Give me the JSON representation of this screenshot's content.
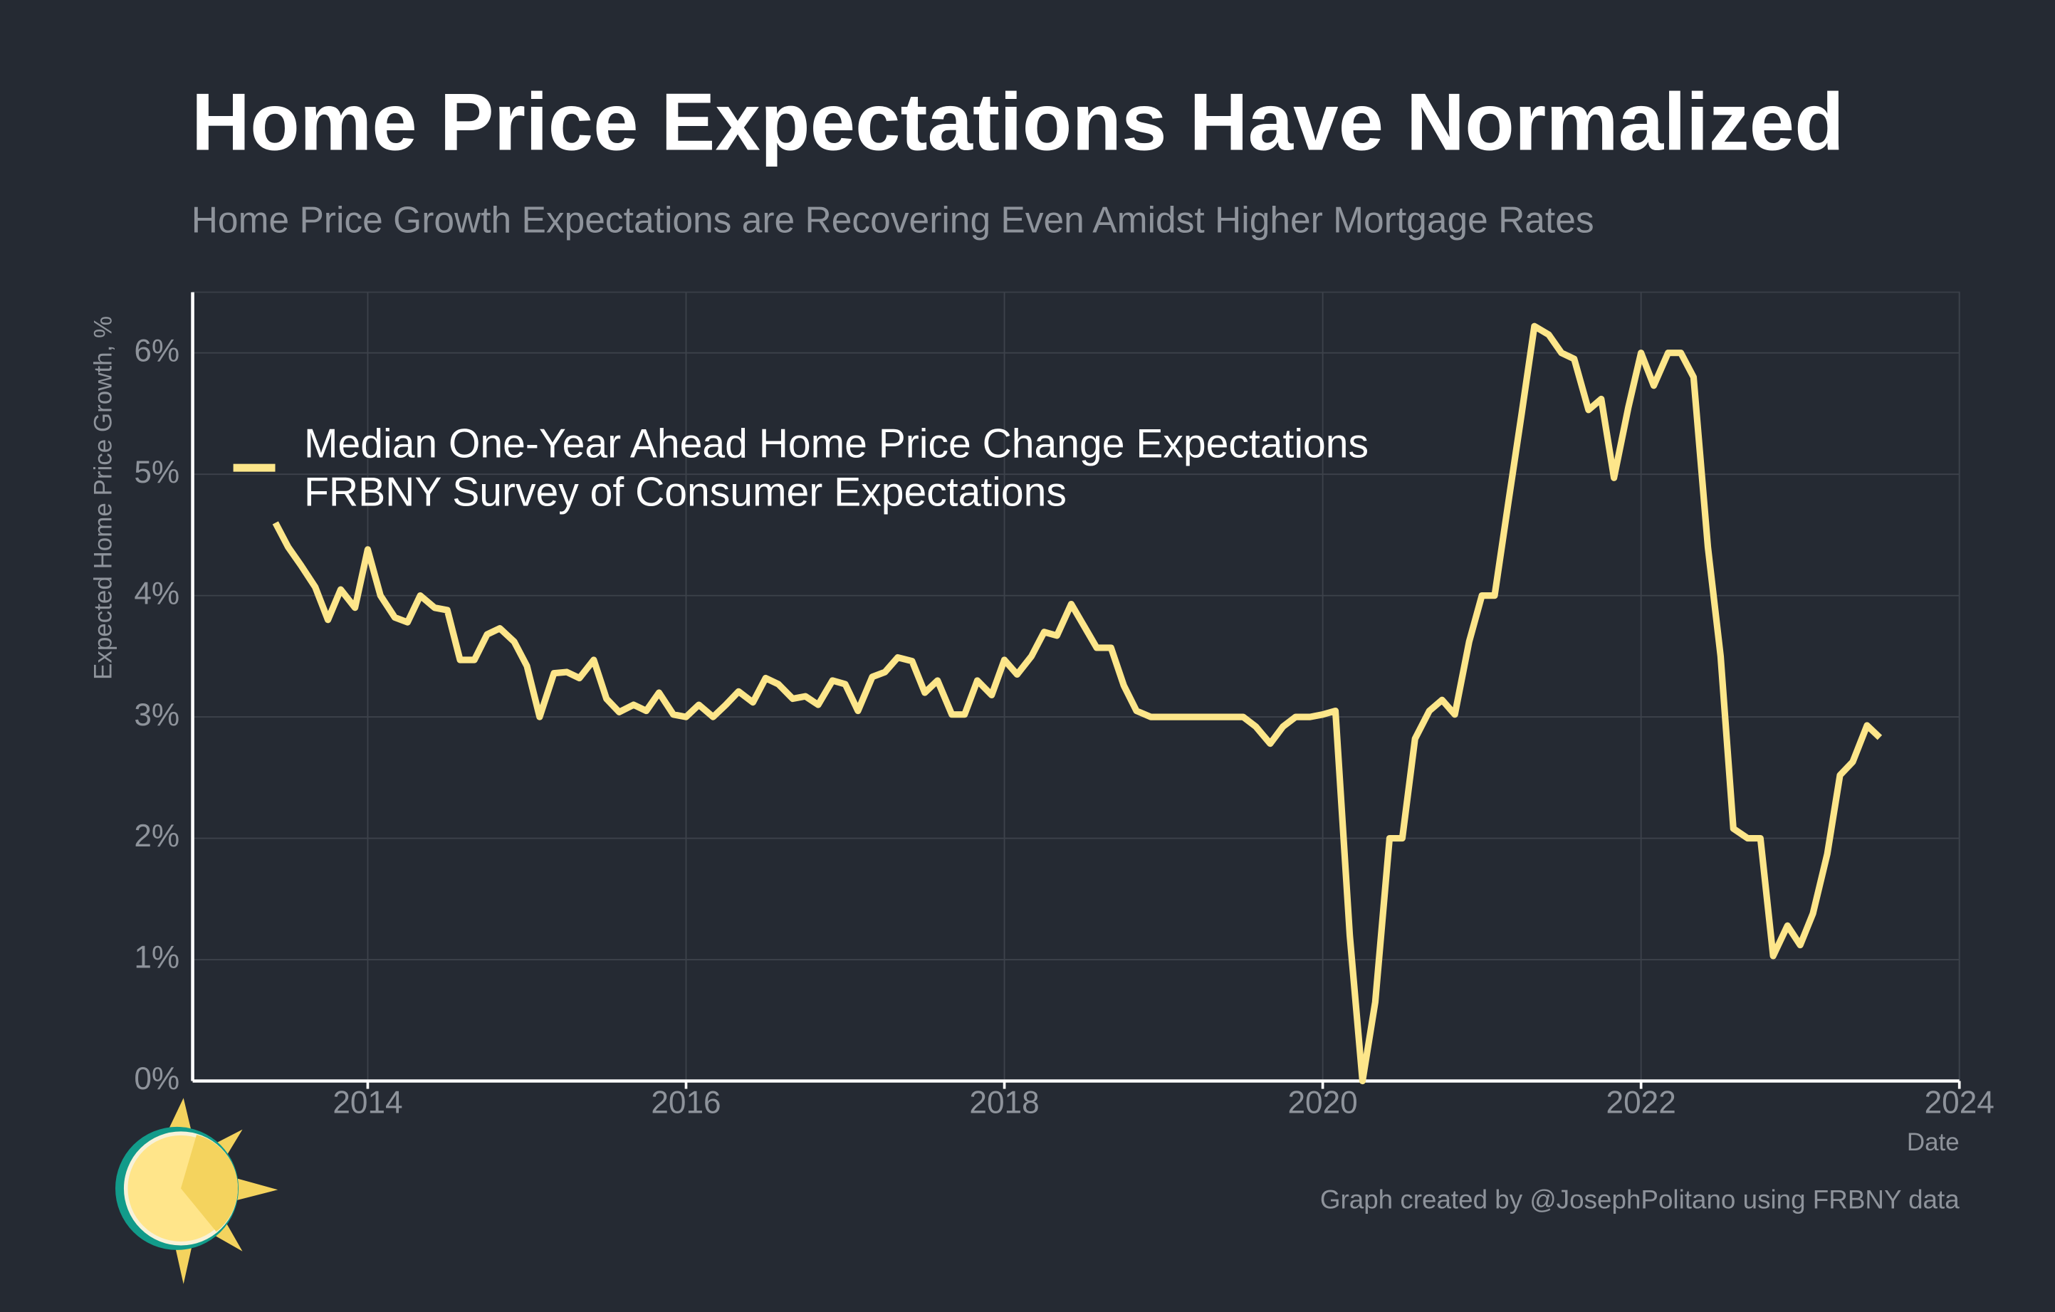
{
  "chart_data": {
    "type": "line",
    "title": "Home Price Expectations Have Normalized",
    "subtitle": "Home Price Growth Expectations are Recovering Even Amidst Higher Mortgage Rates",
    "y_label": "Expected Home Price Growth, %",
    "x_label": "Date",
    "caption": "Graph created by @JosephPolitano using FRBNY data",
    "x": [
      2013.42,
      2013.5,
      2013.58,
      2013.67,
      2013.75,
      2013.83,
      2013.92,
      2014.0,
      2014.08,
      2014.17,
      2014.25,
      2014.33,
      2014.42,
      2014.5,
      2014.58,
      2014.67,
      2014.75,
      2014.83,
      2014.92,
      2015.0,
      2015.08,
      2015.17,
      2015.25,
      2015.33,
      2015.42,
      2015.5,
      2015.58,
      2015.67,
      2015.75,
      2015.83,
      2015.92,
      2016.0,
      2016.08,
      2016.17,
      2016.25,
      2016.33,
      2016.42,
      2016.5,
      2016.58,
      2016.67,
      2016.75,
      2016.83,
      2016.92,
      2017.0,
      2017.08,
      2017.17,
      2017.25,
      2017.33,
      2017.42,
      2017.5,
      2017.58,
      2017.67,
      2017.75,
      2017.83,
      2017.92,
      2018.0,
      2018.08,
      2018.17,
      2018.25,
      2018.33,
      2018.42,
      2018.5,
      2018.58,
      2018.67,
      2018.75,
      2018.83,
      2018.92,
      2019.0,
      2019.08,
      2019.17,
      2019.25,
      2019.33,
      2019.42,
      2019.5,
      2019.58,
      2019.67,
      2019.75,
      2019.83,
      2019.92,
      2020.0,
      2020.08,
      2020.17,
      2020.25,
      2020.33,
      2020.42,
      2020.5,
      2020.58,
      2020.67,
      2020.75,
      2020.83,
      2020.92,
      2021.0,
      2021.08,
      2021.17,
      2021.25,
      2021.33,
      2021.42,
      2021.5,
      2021.58,
      2021.67,
      2021.75,
      2021.83,
      2021.92,
      2022.0,
      2022.08,
      2022.17,
      2022.25,
      2022.33,
      2022.42,
      2022.5,
      2022.58,
      2022.67,
      2022.75,
      2022.83,
      2022.92,
      2023.0,
      2023.08,
      2023.17,
      2023.25,
      2023.33,
      2023.42,
      2023.5
    ],
    "series": [
      {
        "name": "Median One-Year Ahead Home Price Change Expectations\nFRBNY Survey of Consumer Expectations",
        "color": "#fde68a",
        "values": [
          4.6,
          4.4,
          4.25,
          4.07,
          3.8,
          4.05,
          3.9,
          4.38,
          4.0,
          3.82,
          3.78,
          4.0,
          3.9,
          3.88,
          3.47,
          3.47,
          3.68,
          3.73,
          3.62,
          3.42,
          3.0,
          3.36,
          3.37,
          3.32,
          3.47,
          3.15,
          3.04,
          3.1,
          3.05,
          3.2,
          3.02,
          3.0,
          3.1,
          3.0,
          3.1,
          3.21,
          3.12,
          3.32,
          3.27,
          3.15,
          3.17,
          3.1,
          3.3,
          3.27,
          3.05,
          3.33,
          3.37,
          3.49,
          3.46,
          3.2,
          3.3,
          3.02,
          3.02,
          3.3,
          3.18,
          3.47,
          3.35,
          3.5,
          3.7,
          3.67,
          3.93,
          3.75,
          3.57,
          3.57,
          3.26,
          3.05,
          3.0,
          3.0,
          3.0,
          3.0,
          3.0,
          3.0,
          3.0,
          3.0,
          2.92,
          2.78,
          2.92,
          3.0,
          3.0,
          3.02,
          3.05,
          1.2,
          0.0,
          0.65,
          2.0,
          2.0,
          2.82,
          3.05,
          3.14,
          3.02,
          3.62,
          4.0,
          4.0,
          4.8,
          5.5,
          6.22,
          6.15,
          6.0,
          5.95,
          5.53,
          5.62,
          4.97,
          5.55,
          6.0,
          5.73,
          6.0,
          6.0,
          5.8,
          4.4,
          3.5,
          2.08,
          2.0,
          2.0,
          1.03,
          1.28,
          1.12,
          1.38,
          1.87,
          2.52,
          2.63,
          2.93,
          2.83
        ]
      }
    ],
    "xlim": [
      2012.9,
      2024
    ],
    "xticks": [
      2014,
      2016,
      2018,
      2020,
      2022,
      2024
    ],
    "ylim": [
      0,
      6.5
    ],
    "yticks": [
      {
        "value": 0,
        "label": "0%"
      },
      {
        "value": 1,
        "label": "1%"
      },
      {
        "value": 2,
        "label": "2%"
      },
      {
        "value": 3,
        "label": "3%"
      },
      {
        "value": 4,
        "label": "4%"
      },
      {
        "value": 5,
        "label": "5%"
      },
      {
        "value": 6,
        "label": "6%"
      }
    ],
    "grid": true,
    "legend": "upper left"
  }
}
